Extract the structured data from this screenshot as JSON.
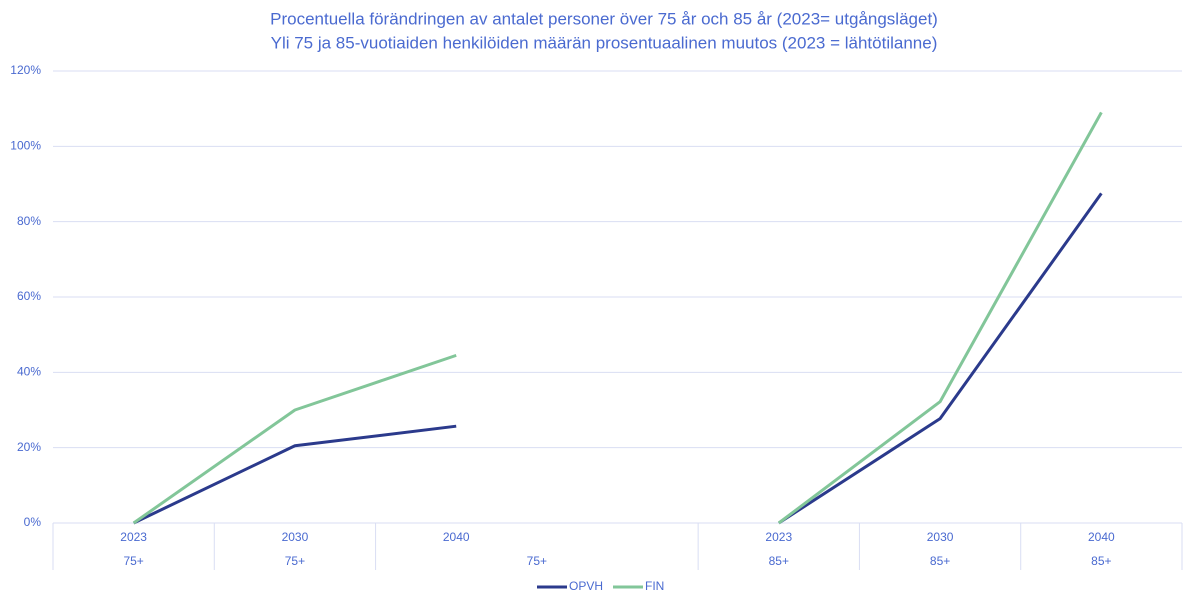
{
  "chart_data": {
    "type": "line",
    "title": "Procentuella förändringen av antalet personer över 75 år och 85 år (2023= utgångsläget)",
    "subtitle": "Yli 75 ja 85-vuotiaiden henkilöiden määrän prosentuaalinen muutos (2023 = lähtötilanne)",
    "categories": [
      "2023",
      "2030",
      "2040",
      null,
      "2023",
      "2030",
      "2040"
    ],
    "groups": [
      "75+",
      "75+",
      "75+",
      null,
      "85+",
      "85+",
      "85+"
    ],
    "series": [
      {
        "name": "OPVH",
        "color": "#2b3a8c",
        "values": [
          0,
          20.5,
          25.7,
          null,
          0,
          27.7,
          87.5
        ]
      },
      {
        "name": "FIN",
        "color": "#82c699",
        "values": [
          0,
          30,
          44.5,
          null,
          0,
          32.2,
          109
        ]
      }
    ],
    "ylim": [
      0,
      120
    ],
    "yticks": [
      {
        "value": 0,
        "label": "0%"
      },
      {
        "value": 20,
        "label": "20%"
      },
      {
        "value": 40,
        "label": "40%"
      },
      {
        "value": 60,
        "label": "60%"
      },
      {
        "value": 80,
        "label": "80%"
      },
      {
        "value": 100,
        "label": "100%"
      },
      {
        "value": 120,
        "label": "120%"
      }
    ],
    "grid": true,
    "legend": "bottom"
  }
}
